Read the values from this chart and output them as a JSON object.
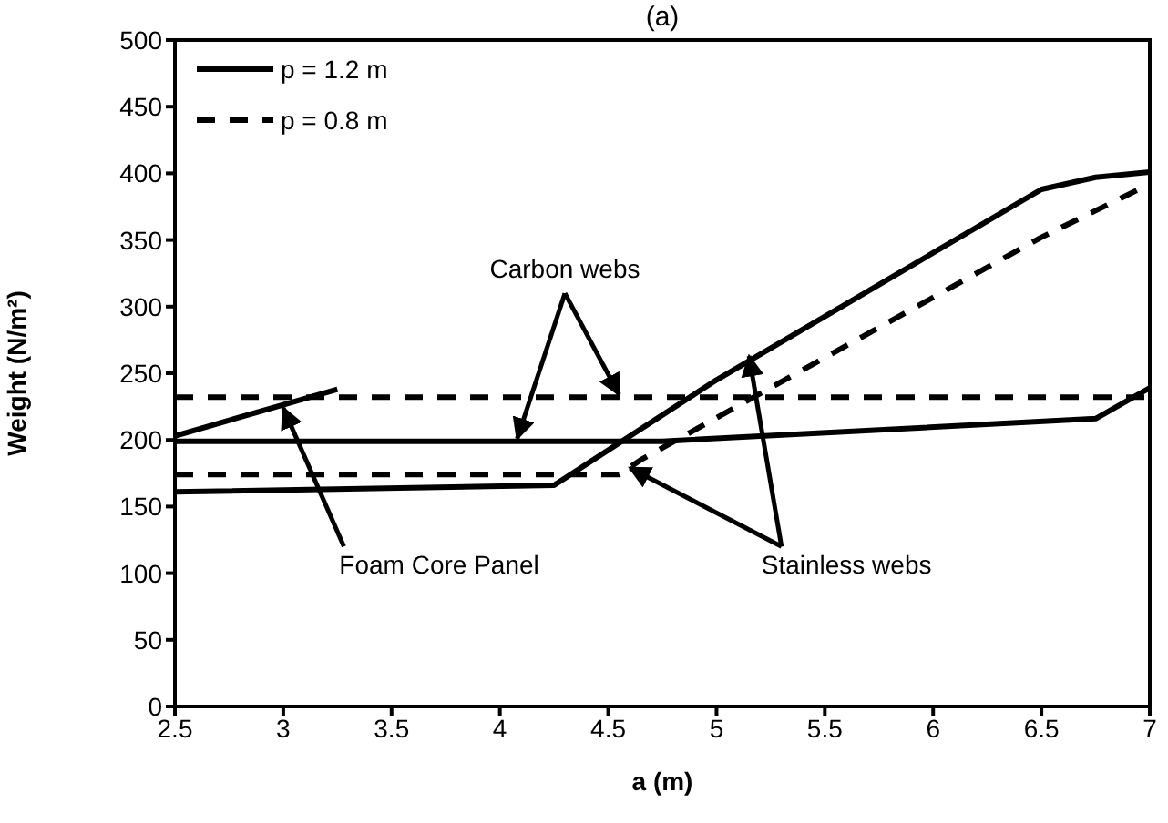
{
  "chart_data": {
    "type": "line",
    "title": "(a)",
    "xlabel": "a (m)",
    "ylabel": "Weight (N/m²)",
    "xlim": [
      2.5,
      7
    ],
    "xticks": [
      2.5,
      3,
      3.5,
      4,
      4.5,
      5,
      5.5,
      6,
      6.5,
      7
    ],
    "ylim": [
      0,
      500
    ],
    "yticks": [
      0,
      50,
      100,
      150,
      200,
      250,
      300,
      350,
      400,
      450,
      500
    ],
    "legend": "top left",
    "marker": "none",
    "annotations": [
      {
        "text": "Carbon webs",
        "x": 4.08,
        "y": 201
      },
      {
        "text": "Foam Core Panel",
        "x": 3.0,
        "y": 224
      },
      {
        "text": "Stainless webs",
        "x": 4.6,
        "y": 179
      }
    ],
    "series": [
      {
        "name": "p = 1.2 m",
        "color": "#000000",
        "line_style": "solid",
        "x": [
          2.5,
          4.75,
          6.75,
          7
        ],
        "values": [
          199,
          199,
          216,
          239
        ]
      },
      {
        "name": "p = 0.8 m",
        "color": "#000000",
        "line_style": "dashed",
        "x": [
          2.5,
          7
        ],
        "values": [
          232,
          232
        ]
      },
      {
        "color": "#000000",
        "line_style": "solid",
        "x": [
          2.5,
          3.25
        ],
        "values": [
          203,
          238
        ]
      },
      {
        "color": "#000000",
        "line_style": "solid",
        "x": [
          2.5,
          4.25,
          5,
          6.5,
          6.75,
          7
        ],
        "values": [
          161,
          166,
          245,
          388,
          397,
          401
        ]
      },
      {
        "color": "#000000",
        "line_style": "dashed",
        "x": [
          2.5,
          4.55,
          4.65,
          6.5,
          7
        ],
        "values": [
          174,
          174,
          185,
          352,
          392
        ]
      }
    ]
  }
}
